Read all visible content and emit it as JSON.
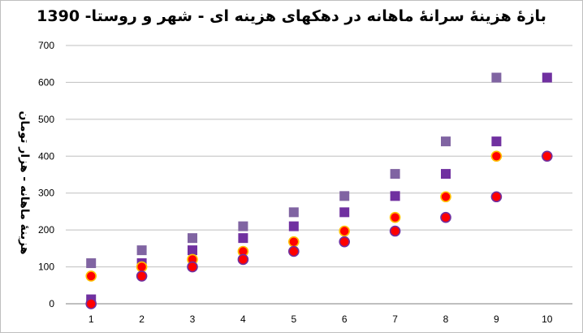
{
  "chart_data": {
    "type": "scatter",
    "title": "بازۀ هزینۀ سرانۀ ماهانه در دهکهای هزینه ای - شهر و روستا- 1390",
    "xlabel": "",
    "ylabel": "هزینۀ ماهانه - هزار تومان",
    "xlim": [
      0.5,
      10.5
    ],
    "ylim": [
      0,
      700
    ],
    "x_ticks": [
      1,
      2,
      3,
      4,
      5,
      6,
      7,
      8,
      9,
      10
    ],
    "y_ticks": [
      0,
      100,
      200,
      300,
      400,
      500,
      600,
      700
    ],
    "grid": "horizontal",
    "legend": "none",
    "series": [
      {
        "marker": "square",
        "color": "#8064a2",
        "x": [
          1,
          2,
          3,
          4,
          5,
          6,
          7,
          8,
          9
        ],
        "values": [
          110,
          145,
          178,
          210,
          248,
          292,
          352,
          440,
          613
        ]
      },
      {
        "marker": "square",
        "color": "#7030a0",
        "x": [
          1,
          2,
          3,
          4,
          5,
          6,
          7,
          8,
          9,
          10
        ],
        "values": [
          12,
          110,
          145,
          178,
          210,
          248,
          292,
          352,
          440,
          613
        ]
      },
      {
        "marker": "circle",
        "color": "#ff0000",
        "outline": "#ffc000",
        "x": [
          1,
          2,
          3,
          4,
          5,
          6,
          7,
          8,
          9
        ],
        "values": [
          75,
          100,
          120,
          142,
          168,
          197,
          234,
          290,
          400
        ]
      },
      {
        "marker": "circle",
        "color": "#ff0000",
        "outline": "#7030a0",
        "x": [
          1,
          2,
          3,
          4,
          5,
          6,
          7,
          8,
          9,
          10
        ],
        "values": [
          0,
          75,
          100,
          120,
          142,
          168,
          197,
          234,
          290,
          400
        ]
      }
    ]
  }
}
